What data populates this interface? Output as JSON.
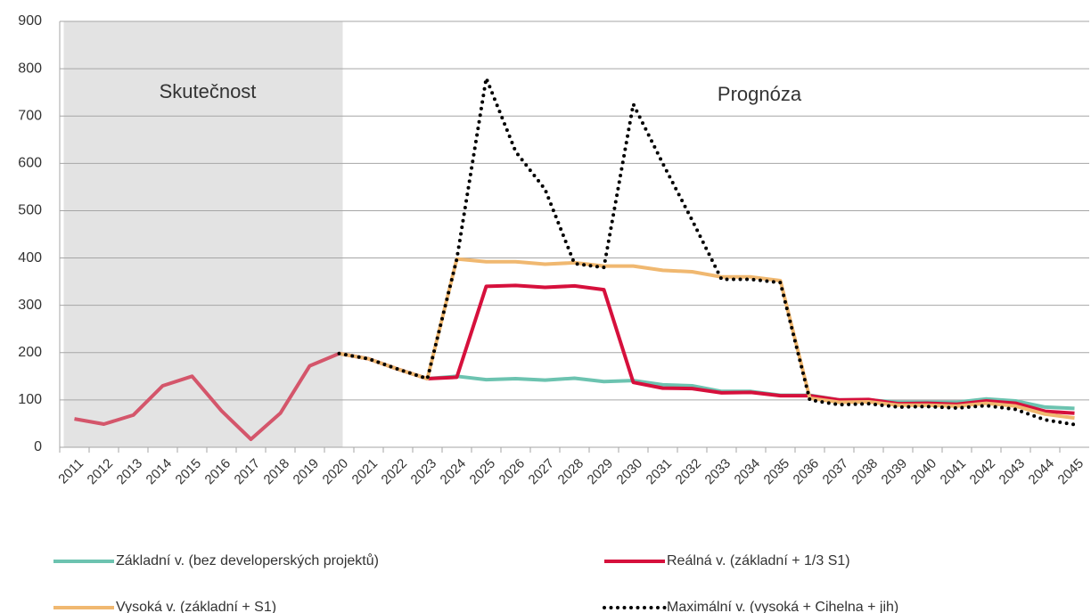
{
  "chart_data": {
    "type": "line",
    "categories": [
      "2011",
      "2012",
      "2013",
      "2014",
      "2015",
      "2016",
      "2017",
      "2018",
      "2019",
      "2020",
      "2021",
      "2022",
      "2023",
      "2024",
      "2025",
      "2026",
      "2027",
      "2028",
      "2029",
      "2030",
      "2031",
      "2032",
      "2033",
      "2034",
      "2035",
      "2036",
      "2037",
      "2038",
      "2039",
      "2040",
      "2041",
      "2042",
      "2043",
      "2044",
      "2045"
    ],
    "annotations": [
      "Skutečnost",
      "Prognóza"
    ],
    "ylim": [
      0,
      900
    ],
    "yticks": [
      0,
      100,
      200,
      300,
      400,
      500,
      600,
      700,
      800,
      900
    ],
    "grid": true,
    "series": [
      {
        "color": "#d4566b",
        "style": "solid",
        "values": [
          60,
          49,
          68,
          130,
          150,
          77,
          17,
          72,
          172,
          198,
          null,
          null,
          null,
          null,
          null,
          null,
          null,
          null,
          null,
          null,
          null,
          null,
          null,
          null,
          null,
          null,
          null,
          null,
          null,
          null,
          null,
          null,
          null,
          null,
          null
        ]
      },
      {
        "name": "Základní v. (bez developerských projektů)",
        "color": "#6cc3b0",
        "style": "solid",
        "values": [
          null,
          null,
          null,
          null,
          null,
          null,
          null,
          null,
          null,
          198,
          187,
          165,
          145,
          150,
          143,
          145,
          142,
          146,
          139,
          141,
          132,
          130,
          118,
          118,
          110,
          110,
          100,
          100,
          95,
          95,
          95,
          102,
          98,
          85,
          82
        ]
      },
      {
        "name": "Reálná v. (základní + 1/3 S1)",
        "color": "#d6103c",
        "style": "solid",
        "values": [
          null,
          null,
          null,
          null,
          null,
          null,
          null,
          null,
          null,
          198,
          187,
          165,
          145,
          148,
          340,
          342,
          338,
          341,
          333,
          137,
          125,
          124,
          115,
          116,
          109,
          109,
          100,
          101,
          92,
          93,
          91,
          98,
          93,
          76,
          72
        ]
      },
      {
        "name": "Vysoká v. (základní + S1)",
        "color": "#f0b870",
        "style": "solid",
        "values": [
          null,
          null,
          null,
          null,
          null,
          null,
          null,
          null,
          null,
          198,
          187,
          165,
          145,
          398,
          392,
          392,
          387,
          390,
          383,
          383,
          374,
          371,
          360,
          360,
          352,
          104,
          95,
          96,
          89,
          89,
          87,
          93,
          87,
          70,
          62
        ]
      },
      {
        "name": "Maximální v. (vysoká + Cihelna + jih)",
        "color": "#000000",
        "style": "dotted",
        "values": [
          null,
          null,
          null,
          null,
          null,
          null,
          null,
          null,
          null,
          198,
          187,
          165,
          145,
          398,
          780,
          625,
          545,
          388,
          380,
          725,
          600,
          480,
          355,
          355,
          348,
          100,
          90,
          92,
          85,
          86,
          83,
          88,
          80,
          58,
          48
        ]
      }
    ]
  }
}
